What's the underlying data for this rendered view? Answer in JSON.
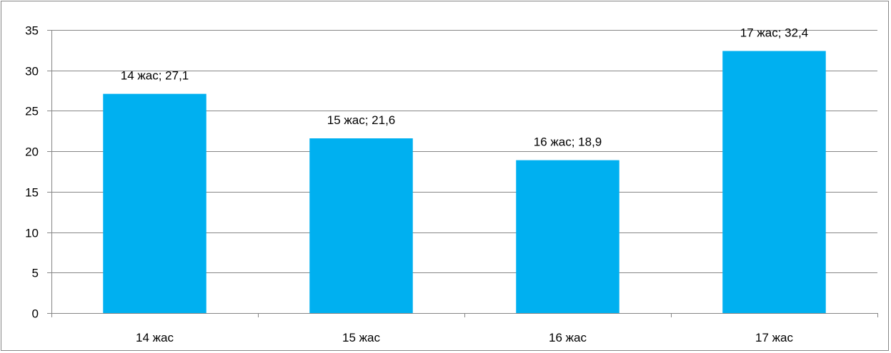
{
  "chart_data": {
    "type": "bar",
    "categories": [
      "14 жас",
      "15 жас",
      "16 жас",
      "17 жас"
    ],
    "values": [
      27.1,
      21.6,
      18.9,
      32.4
    ],
    "data_labels": [
      "14 жас; 27,1",
      "15 жас; 21,6",
      "16 жас; 18,9",
      "17 жас; 32,4"
    ],
    "y_ticks": [
      "0",
      "5",
      "10",
      "15",
      "20",
      "25",
      "30",
      "35"
    ],
    "ylim": [
      0,
      35
    ],
    "ystep": 5,
    "grid": true,
    "legend": "none",
    "bar_color": "#00B0F0",
    "title": "",
    "xlabel": "",
    "ylabel": ""
  }
}
